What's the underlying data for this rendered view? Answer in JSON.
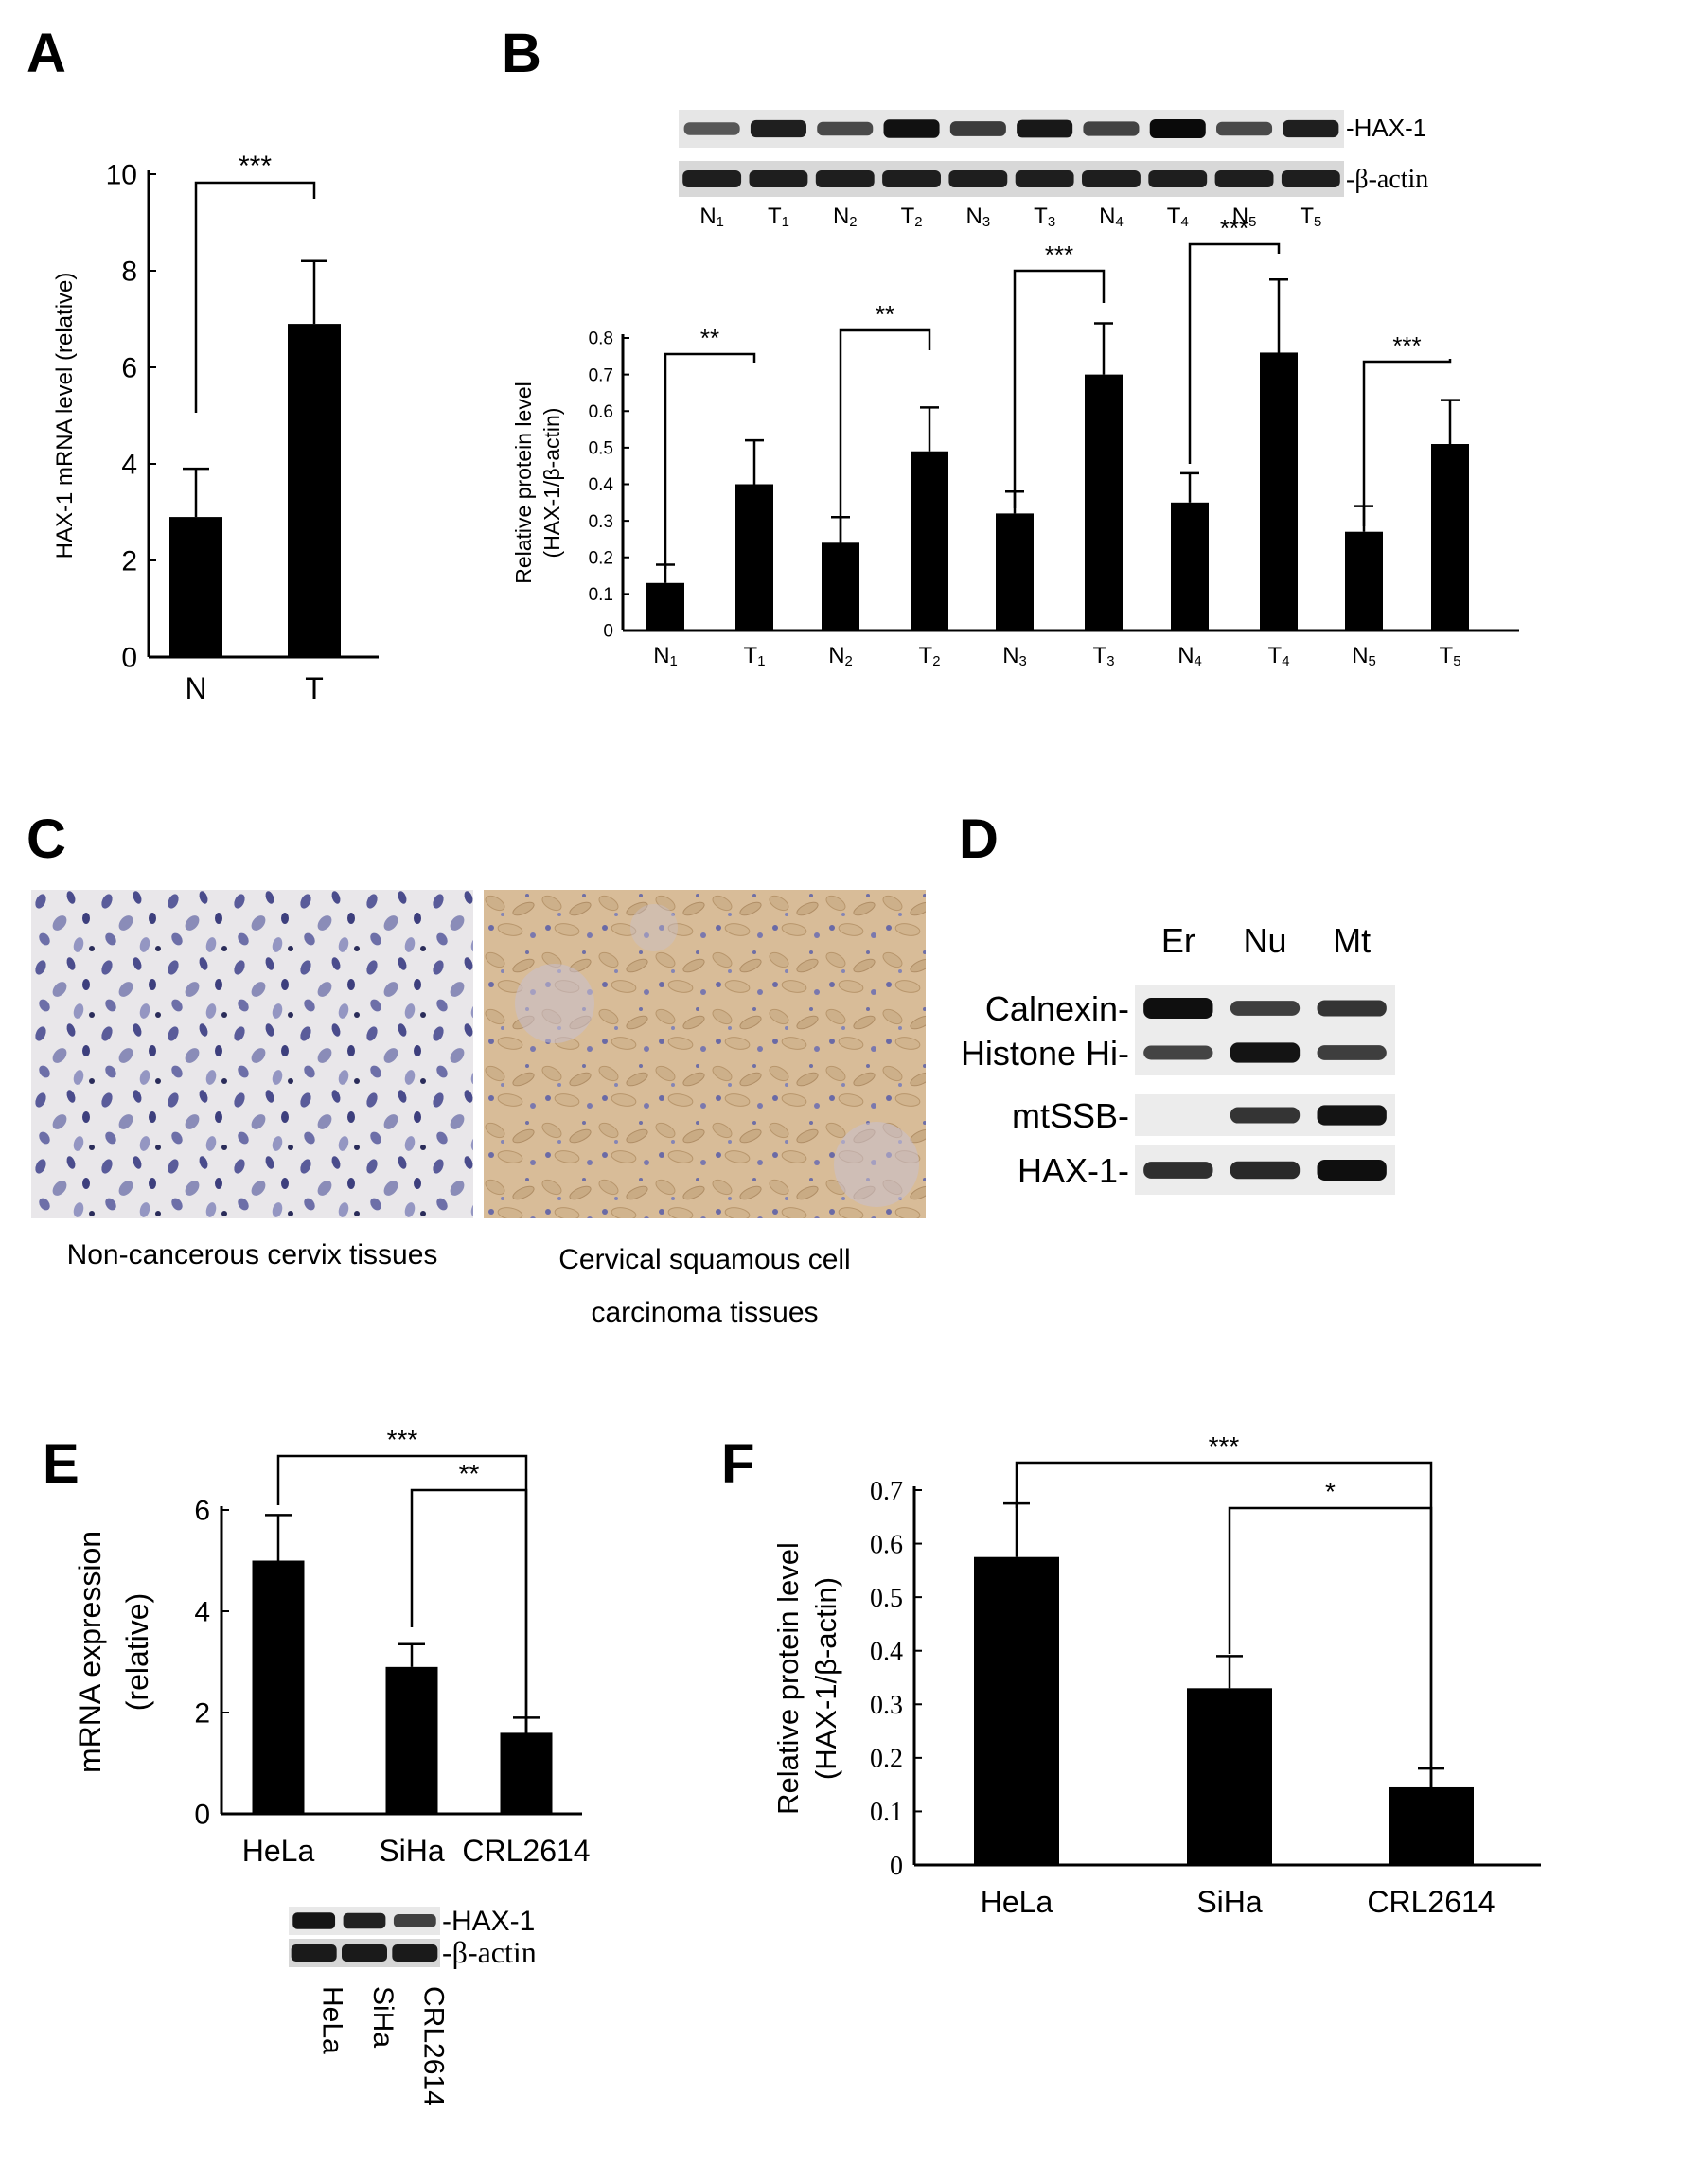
{
  "panel_letters": [
    "A",
    "B",
    "C",
    "D",
    "E",
    "F"
  ],
  "chart_data": [
    {
      "panel": "A",
      "type": "bar",
      "categories": [
        "N",
        "T"
      ],
      "values": [
        2.9,
        6.9
      ],
      "errors": [
        1.0,
        1.3
      ],
      "ylabel": "HAX-1 mRNA level (relative)",
      "ylim": [
        0,
        10
      ],
      "yticks": [
        "0",
        "2",
        "4",
        "6",
        "8",
        "10"
      ],
      "significance": [
        {
          "from": "N",
          "to": "T",
          "label": "***"
        }
      ]
    },
    {
      "panel": "B",
      "type": "bar",
      "categories": [
        "N1",
        "T1",
        "N2",
        "T2",
        "N3",
        "T3",
        "N4",
        "T4",
        "N5",
        "T5"
      ],
      "category_labels": [
        {
          "base": "N",
          "sub": "1"
        },
        {
          "base": "T",
          "sub": "1"
        },
        {
          "base": "N",
          "sub": "2"
        },
        {
          "base": "T",
          "sub": "2"
        },
        {
          "base": "N",
          "sub": "3"
        },
        {
          "base": "T",
          "sub": "3"
        },
        {
          "base": "N",
          "sub": "4"
        },
        {
          "base": "T",
          "sub": "4"
        },
        {
          "base": "N",
          "sub": "5"
        },
        {
          "base": "T",
          "sub": "5"
        }
      ],
      "values": [
        0.13,
        0.4,
        0.24,
        0.49,
        0.32,
        0.7,
        0.35,
        0.76,
        0.27,
        0.51
      ],
      "errors": [
        0.05,
        0.12,
        0.07,
        0.12,
        0.06,
        0.14,
        0.08,
        0.2,
        0.07,
        0.12
      ],
      "ylabel_lines": [
        "Relative protein level",
        "(HAX-1/β-actin)"
      ],
      "ylim": [
        0,
        0.8
      ],
      "yticks": [
        "0",
        "0.1",
        "0.2",
        "0.3",
        "0.4",
        "0.5",
        "0.6",
        "0.7",
        "0.8"
      ],
      "significance": [
        {
          "from": "N1",
          "to": "T1",
          "label": "**"
        },
        {
          "from": "N2",
          "to": "T2",
          "label": "**"
        },
        {
          "from": "N3",
          "to": "T3",
          "label": "***"
        },
        {
          "from": "N4",
          "to": "T4",
          "label": "***"
        },
        {
          "from": "N5",
          "to": "T5",
          "label": "***"
        }
      ]
    },
    {
      "panel": "E",
      "type": "bar",
      "categories": [
        "HeLa",
        "SiHa",
        "CRL2614"
      ],
      "values": [
        5.0,
        2.9,
        1.6
      ],
      "errors": [
        0.9,
        0.45,
        0.3
      ],
      "ylabel_lines": [
        "mRNA expression",
        "(relative)"
      ],
      "ylim": [
        0,
        6
      ],
      "yticks": [
        "0",
        "2",
        "4",
        "6"
      ],
      "significance": [
        {
          "from": "HeLa",
          "to": "CRL2614",
          "label": "***"
        },
        {
          "from": "SiHa",
          "to": "CRL2614",
          "label": "**"
        }
      ]
    },
    {
      "panel": "F",
      "type": "bar",
      "categories": [
        "HeLa",
        "SiHa",
        "CRL2614"
      ],
      "values": [
        0.575,
        0.33,
        0.145
      ],
      "errors": [
        0.1,
        0.06,
        0.035
      ],
      "ylabel_lines": [
        "Relative protein level",
        "(HAX-1/β-actin)"
      ],
      "ylim": [
        0,
        0.7
      ],
      "yticks": [
        "0",
        "0.1",
        "0.2",
        "0.3",
        "0.4",
        "0.5",
        "0.6",
        "0.7"
      ],
      "significance": [
        {
          "from": "HeLa",
          "to": "CRL2614",
          "label": "***"
        },
        {
          "from": "SiHa",
          "to": "CRL2614",
          "label": "*"
        }
      ]
    }
  ],
  "blot_B": {
    "row_labels": [
      "-HAX-1",
      "-β-actin"
    ],
    "lanes": [
      {
        "base": "N",
        "sub": "1"
      },
      {
        "base": "T",
        "sub": "1"
      },
      {
        "base": "N",
        "sub": "2"
      },
      {
        "base": "T",
        "sub": "2"
      },
      {
        "base": "N",
        "sub": "3"
      },
      {
        "base": "T",
        "sub": "3"
      },
      {
        "base": "N",
        "sub": "4"
      },
      {
        "base": "T",
        "sub": "4"
      },
      {
        "base": "N",
        "sub": "5"
      },
      {
        "base": "T",
        "sub": "5"
      }
    ],
    "hax1_intensity": [
      0.45,
      0.85,
      0.55,
      0.95,
      0.65,
      0.9,
      0.6,
      1.0,
      0.55,
      0.85
    ]
  },
  "panel_C": {
    "left_caption": "Non-cancerous cervix tissues",
    "right_caption_lines": [
      "Cervical squamous cell",
      "carcinoma tissues"
    ]
  },
  "blot_D": {
    "columns": [
      "Er",
      "Nu",
      "Mt"
    ],
    "rows": [
      {
        "label": "Calnexin-",
        "intensity": [
          1.0,
          0.55,
          0.65
        ]
      },
      {
        "label": "Histone Hi-",
        "intensity": [
          0.5,
          0.95,
          0.55
        ]
      },
      {
        "label": "mtSSB-",
        "intensity": [
          0.0,
          0.65,
          0.95
        ]
      },
      {
        "label": "HAX-1-",
        "intensity": [
          0.7,
          0.75,
          1.0
        ]
      }
    ]
  },
  "blot_E": {
    "row_labels": [
      "-HAX-1",
      "-β-actin"
    ],
    "lanes": [
      "HeLa",
      "SiHa",
      "CRL2614"
    ],
    "hax1_intensity": [
      0.95,
      0.85,
      0.6
    ]
  }
}
